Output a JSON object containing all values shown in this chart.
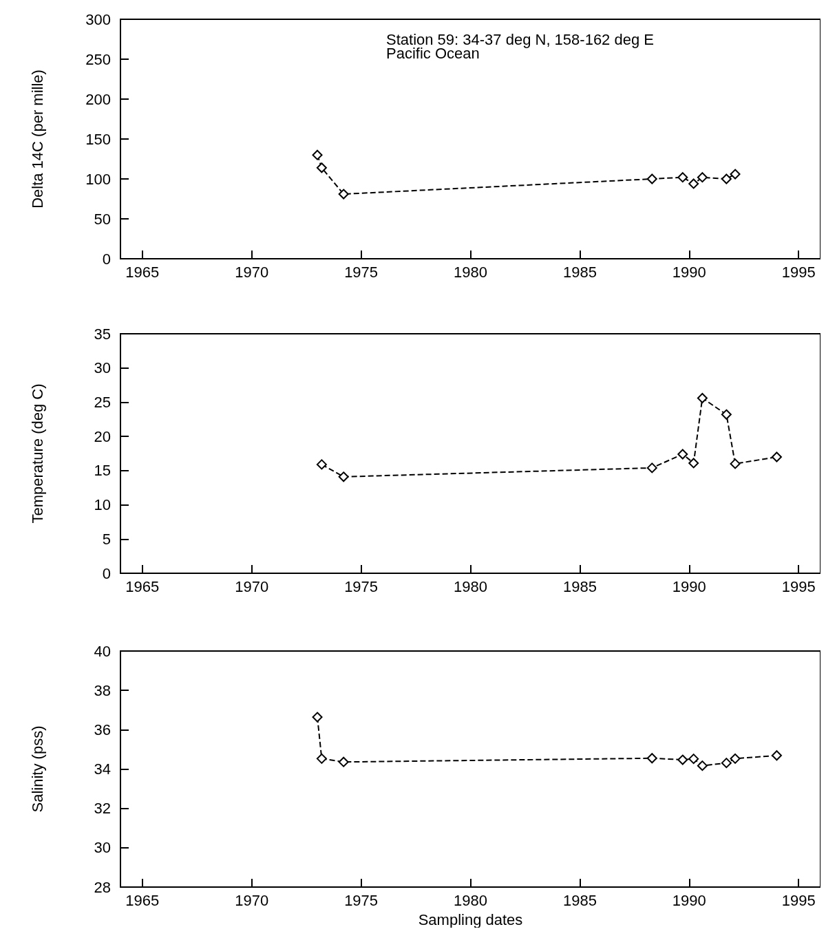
{
  "chart_data": [
    {
      "type": "line",
      "ylabel": "Delta 14C (per mille)",
      "annotations": [
        "Station 59: 34-37 deg N, 158-162 deg E",
        "Pacific Ocean"
      ],
      "x": [
        1973.0,
        1973.2,
        1974.2,
        1988.3,
        1989.7,
        1990.2,
        1990.6,
        1991.7,
        1992.1
      ],
      "values": [
        130,
        114,
        81,
        100,
        102,
        94,
        102,
        100,
        106
      ],
      "color": "#000000",
      "marker": "diamond",
      "line_style": "dashed",
      "grid": false,
      "xlim": [
        1964,
        1996
      ],
      "xticks": [
        1965,
        1970,
        1975,
        1980,
        1985,
        1990,
        1995
      ],
      "ylim": [
        0,
        300
      ],
      "yticks": [
        0,
        50,
        100,
        150,
        200,
        250,
        300
      ]
    },
    {
      "type": "line",
      "ylabel": "Temperature (deg C)",
      "x": [
        1973.2,
        1974.2,
        1988.3,
        1989.7,
        1990.2,
        1990.6,
        1991.7,
        1992.1,
        1994.0
      ],
      "values": [
        15.9,
        14.1,
        15.4,
        17.4,
        16.1,
        25.6,
        23.2,
        16.0,
        17.0
      ],
      "color": "#000000",
      "marker": "diamond",
      "line_style": "dashed",
      "grid": false,
      "xlim": [
        1964,
        1996
      ],
      "xticks": [
        1965,
        1970,
        1975,
        1980,
        1985,
        1990,
        1995
      ],
      "ylim": [
        0,
        35
      ],
      "yticks": [
        0,
        5,
        10,
        15,
        20,
        25,
        30,
        35
      ]
    },
    {
      "type": "line",
      "ylabel": "Salinity (pss)",
      "xlabel": "Sampling dates",
      "x": [
        1973.0,
        1973.2,
        1974.2,
        1988.3,
        1989.7,
        1990.2,
        1990.6,
        1991.7,
        1992.1,
        1994.0
      ],
      "values": [
        36.64,
        34.53,
        34.36,
        34.55,
        34.47,
        34.52,
        34.17,
        34.31,
        34.53,
        34.69
      ],
      "color": "#000000",
      "marker": "diamond",
      "line_style": "dashed",
      "grid": false,
      "xlim": [
        1964,
        1996
      ],
      "xticks": [
        1965,
        1970,
        1975,
        1980,
        1985,
        1990,
        1995
      ],
      "ylim": [
        28,
        40
      ],
      "yticks": [
        28,
        30,
        32,
        34,
        36,
        38,
        40
      ]
    }
  ]
}
